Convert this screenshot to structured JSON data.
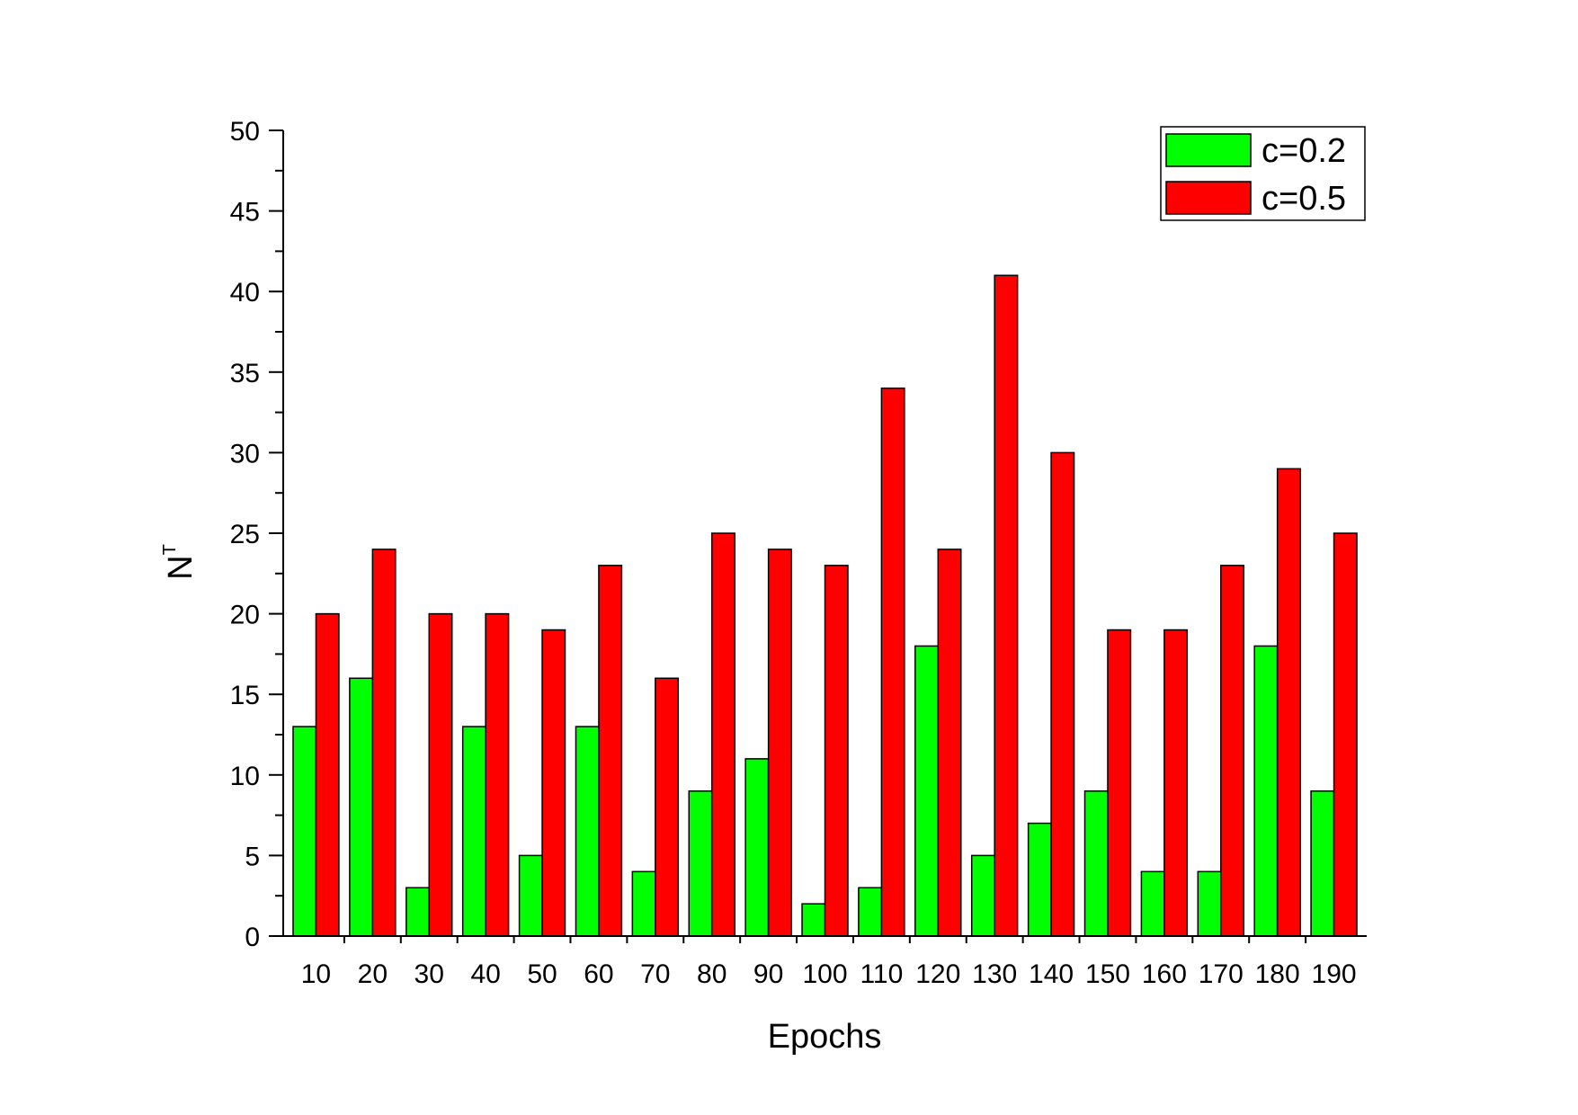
{
  "chart_data": {
    "type": "bar",
    "categories": [
      "10",
      "20",
      "30",
      "40",
      "50",
      "60",
      "70",
      "80",
      "90",
      "100",
      "110",
      "120",
      "130",
      "140",
      "150",
      "160",
      "170",
      "180",
      "190"
    ],
    "series": [
      {
        "name": "c=0.2",
        "color": "#00ff00",
        "values": [
          13,
          16,
          3,
          13,
          5,
          13,
          4,
          9,
          11,
          2,
          3,
          18,
          5,
          7,
          9,
          4,
          4,
          18,
          9
        ]
      },
      {
        "name": "c=0.5",
        "color": "#ff0000",
        "values": [
          20,
          24,
          20,
          20,
          19,
          23,
          16,
          25,
          24,
          23,
          34,
          24,
          41,
          30,
          19,
          19,
          23,
          29,
          25
        ]
      }
    ],
    "title": "",
    "xlabel": "Epochs",
    "ylabel": "N",
    "ylabel_superscript": "T",
    "ylim": [
      0,
      50
    ],
    "yticks": [
      0,
      5,
      10,
      15,
      20,
      25,
      30,
      35,
      40,
      45,
      50
    ],
    "grid": false,
    "legend_position": "top-right"
  }
}
